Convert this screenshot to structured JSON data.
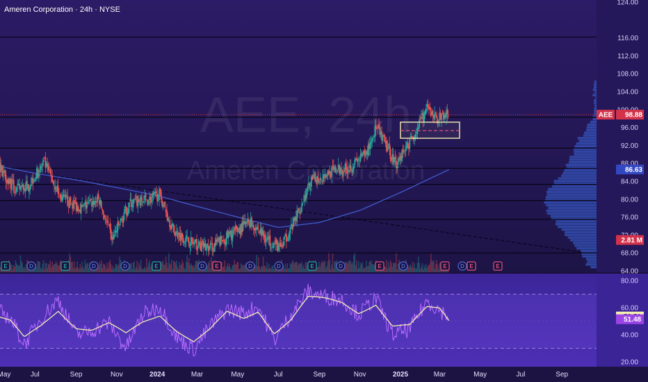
{
  "header": {
    "title": "Ameren Corporation · 24h · NYSE",
    "watermark_ticker": "AEE, 24h",
    "watermark_name": "Ameren Corporation"
  },
  "colors": {
    "price_bg": "#2a1c63",
    "rsi_bg": "#3a2496",
    "up": "#26a69a",
    "down": "#ef5350",
    "ma": "#3f57c8",
    "rsi_line": "#b96cff",
    "rsi_ma": "#f4eeb0",
    "zone": "#f4eeb0",
    "badge_red": "#d3324a",
    "badge_blue": "#3348c0"
  },
  "chart_data": [
    {
      "type": "candlestick",
      "name": "price",
      "title": "Ameren Corporation · 24h · NYSE",
      "y_ticks": [
        "124.00",
        "116.00",
        "112.00",
        "108.00",
        "104.00",
        "100.00",
        "96.00",
        "92.00",
        "88.00",
        "84.00",
        "80.00",
        "76.00",
        "72.00",
        "68.00",
        "64.00"
      ],
      "ylim": [
        64,
        124
      ],
      "x_ticks": [
        "May",
        "Jul",
        "Sep",
        "Nov",
        "2024",
        "Mar",
        "May",
        "Jul",
        "Sep",
        "Nov",
        "2025",
        "Mar",
        "May",
        "Jul",
        "Sep"
      ],
      "bold_x_ticks": [
        "2024",
        "2025"
      ],
      "x_range": [
        "2023-05",
        "2025-09"
      ],
      "series_anchors": {
        "x": [
          "2023-05-01",
          "2023-06-01",
          "2023-06-20",
          "2023-07-15",
          "2023-08-10",
          "2023-09-10",
          "2023-10-05",
          "2023-10-25",
          "2023-11-20",
          "2023-12-20",
          "2024-01-05",
          "2024-01-25",
          "2024-02-25",
          "2024-03-20",
          "2024-04-20",
          "2024-05-20",
          "2024-06-15",
          "2024-07-05",
          "2024-07-25",
          "2024-08-20",
          "2024-09-15",
          "2024-10-15",
          "2024-11-10",
          "2024-11-25",
          "2024-12-10",
          "2024-12-25",
          "2025-01-20",
          "2025-02-10",
          "2025-02-25",
          "2025-03-15"
        ],
        "close": [
          89,
          82,
          83,
          88,
          80,
          78,
          80,
          71,
          79,
          80,
          81,
          73,
          70,
          69,
          72,
          75,
          71,
          69,
          75,
          84,
          86,
          87,
          90,
          96,
          92,
          88,
          94,
          100,
          98,
          99
        ]
      },
      "moving_average": {
        "x": [
          "2023-05-01",
          "2023-07-01",
          "2023-09-01",
          "2023-11-01",
          "2024-01-01",
          "2024-03-01",
          "2024-05-01",
          "2024-07-01",
          "2024-09-01",
          "2024-11-01",
          "2025-01-01",
          "2025-03-15"
        ],
        "values": [
          87.5,
          85.8,
          84.3,
          82.6,
          80.8,
          78.4,
          76.0,
          73.7,
          74.8,
          77.5,
          81.5,
          86.6
        ]
      },
      "horizontal_levels": [
        116.2,
        98.3,
        91.4,
        86.9,
        83.3,
        79.7,
        75.5,
        68.0
      ],
      "trendline": {
        "x": [
          "2023-05-01",
          "2025-09-30"
        ],
        "y": [
          87.2,
          68.2
        ]
      },
      "zone": {
        "x": [
          "2025-01-01",
          "2025-03-31"
        ],
        "y": [
          93.6,
          97.2
        ],
        "mid": 95.3
      },
      "current_price_line": 98.88,
      "badges": [
        {
          "label": "AEE",
          "value": "98.88",
          "y": 98.88,
          "color": "red"
        },
        {
          "label": "",
          "value": "86.63",
          "y": 86.63,
          "color": "blue"
        },
        {
          "label": "",
          "value": "2.81 M",
          "y": 70.9,
          "color": "red"
        }
      ],
      "events": [
        "E",
        "D",
        "E",
        "D",
        "D",
        "E",
        "D",
        "E",
        "D",
        "D",
        "E",
        "D",
        "E",
        "D",
        "E",
        "D",
        "E",
        "E"
      ]
    },
    {
      "type": "line",
      "name": "rsi",
      "y_ticks": [
        "80.00",
        "60.00",
        "40.00",
        "20.00"
      ],
      "ylim": [
        20,
        80
      ],
      "bands": [
        70,
        30
      ],
      "rsi_ma_anchors": {
        "x": [
          "2023-05-01",
          "2023-05-25",
          "2023-06-15",
          "2023-07-10",
          "2023-08-05",
          "2023-09-01",
          "2023-09-25",
          "2023-10-20",
          "2023-11-15",
          "2023-12-10",
          "2024-01-05",
          "2024-01-30",
          "2024-02-25",
          "2024-03-20",
          "2024-04-15",
          "2024-05-10",
          "2024-06-01",
          "2024-06-25",
          "2024-07-20",
          "2024-08-15",
          "2024-09-10",
          "2024-10-05",
          "2024-10-30",
          "2024-11-25",
          "2024-12-20",
          "2025-01-15",
          "2025-02-10",
          "2025-03-01",
          "2025-03-15"
        ],
        "values": [
          55,
          50,
          37,
          46,
          58,
          46,
          44,
          48,
          40,
          49,
          55,
          44,
          35,
          43,
          56,
          52,
          58,
          42,
          51,
          67,
          66,
          64,
          57,
          63,
          46,
          46,
          60,
          60,
          51.5
        ]
      },
      "rsi_anchors": {
        "x": [
          "2023-05-01",
          "2023-05-25",
          "2023-06-15",
          "2023-07-10",
          "2023-08-05",
          "2023-09-01",
          "2023-09-25",
          "2023-10-20",
          "2023-11-15",
          "2023-12-10",
          "2024-01-05",
          "2024-01-30",
          "2024-02-25",
          "2024-03-20",
          "2024-04-15",
          "2024-05-10",
          "2024-06-01",
          "2024-06-25",
          "2024-07-20",
          "2024-08-15",
          "2024-09-10",
          "2024-10-05",
          "2024-10-30",
          "2024-11-25",
          "2024-12-20",
          "2025-01-15",
          "2025-02-10",
          "2025-03-01",
          "2025-03-15"
        ],
        "values": [
          60,
          52,
          33,
          52,
          66,
          40,
          43,
          49,
          30,
          55,
          61,
          38,
          29,
          46,
          59,
          56,
          61,
          36,
          55,
          72,
          68,
          66,
          55,
          67,
          40,
          44,
          65,
          58,
          53.5
        ]
      },
      "badges": [
        {
          "value": "53.51",
          "y": 53.51,
          "color": "cream"
        },
        {
          "value": "51.48",
          "y": 51.48,
          "color": "purple"
        }
      ]
    }
  ]
}
